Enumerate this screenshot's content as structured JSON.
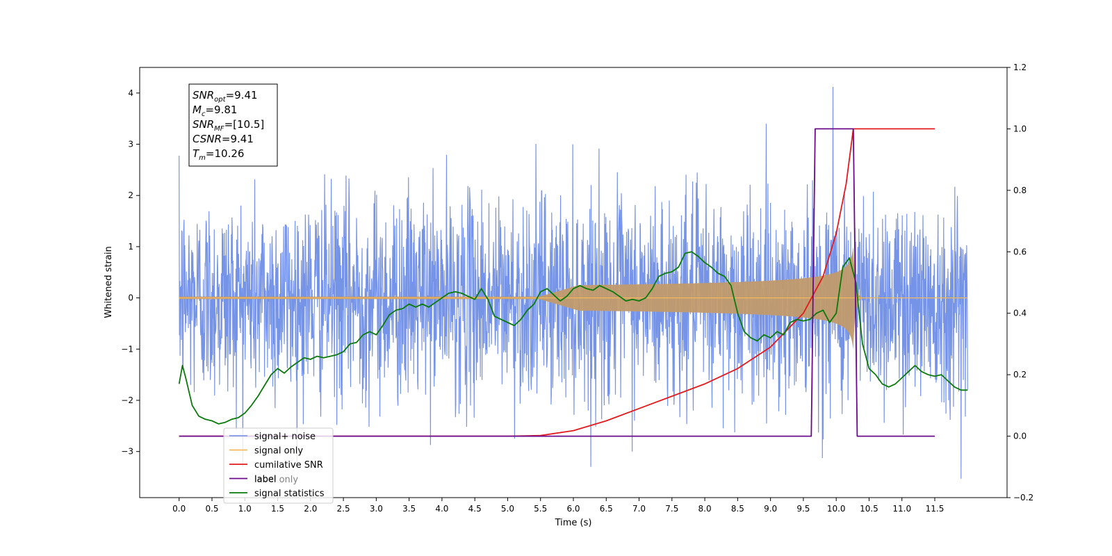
{
  "chart_data": {
    "type": "line",
    "xlabel": "Time (s)",
    "ylabel_left": "Whitened strain",
    "ylabel_right": "",
    "xlim": [
      -0.6,
      12.6
    ],
    "ylim_left": [
      -3.9,
      4.5
    ],
    "ylim_right": [
      -0.2,
      1.2
    ],
    "x_ticks": [
      "0.0",
      "0.5",
      "1.0",
      "1.5",
      "2.0",
      "2.5",
      "3.0",
      "3.5",
      "4.0",
      "4.5",
      "5.0",
      "5.5",
      "6.0",
      "6.5",
      "7.0",
      "7.5",
      "8.0",
      "8.5",
      "9.0",
      "9.5",
      "10.0",
      "10.5",
      "11.0",
      "11.5"
    ],
    "y_ticks_left": [
      "4",
      "3",
      "2",
      "1",
      "0",
      "−1",
      "−2",
      "−3"
    ],
    "y_ticks_right": [
      "1.2",
      "1.0",
      "0.8",
      "0.6",
      "0.4",
      "0.2",
      "0.0",
      "−0.2"
    ],
    "grid": false,
    "legend_position": "lower-left",
    "info_box": {
      "position": "upper-left",
      "lines": [
        {
          "base": "SNR",
          "sub": "opt",
          "value": "=9.41"
        },
        {
          "base": "M",
          "sub": "c",
          "value": "=9.81"
        },
        {
          "base": "SNR",
          "sub": "MF",
          "value": "=[10.5]"
        },
        {
          "base": "CSNR",
          "sub": "",
          "value": "=9.41"
        },
        {
          "base": "T",
          "sub": "m",
          "value": "=10.26"
        }
      ]
    },
    "series": [
      {
        "name": "signal+ noise",
        "color": "#6f8ee6",
        "axis": "left",
        "kind": "noise",
        "x_range": [
          0.0,
          12.0
        ],
        "envelope_typical": 1.0,
        "max": 4.12,
        "min": -3.53
      },
      {
        "name": "signal only",
        "color": "#f5b85c",
        "axis": "left",
        "kind": "chirp",
        "x_range": [
          0.0,
          12.0
        ],
        "merger_time": 10.26,
        "peak_amplitude": 1.0,
        "fill_color": "#c19a6b"
      },
      {
        "name": "cumilative SNR",
        "color": "#e31a1c",
        "axis": "right",
        "x": [
          0.0,
          5.0,
          5.5,
          6.0,
          6.5,
          7.0,
          7.5,
          8.0,
          8.5,
          9.0,
          9.5,
          9.8,
          10.0,
          10.15,
          10.26,
          11.5
        ],
        "y": [
          0.0,
          0.0,
          0.002,
          0.018,
          0.05,
          0.09,
          0.13,
          0.17,
          0.22,
          0.29,
          0.4,
          0.52,
          0.66,
          0.82,
          1.0,
          1.0
        ]
      },
      {
        "name": "label",
        "color": "#6a0a8a",
        "axis": "right",
        "x": [
          0.0,
          9.62,
          9.68,
          10.26,
          10.32,
          11.5
        ],
        "y": [
          0.0,
          0.0,
          1.0,
          1.0,
          0.0,
          0.0
        ]
      },
      {
        "name": "label only",
        "color": "#9e9e9e",
        "axis": "right",
        "x": [],
        "y": []
      },
      {
        "name": "signal statistics",
        "color": "#0a7a0a",
        "axis": "right",
        "x": [
          0.0,
          0.05,
          0.1,
          0.2,
          0.3,
          0.4,
          0.5,
          0.6,
          0.7,
          0.8,
          0.9,
          1.0,
          1.1,
          1.2,
          1.3,
          1.4,
          1.5,
          1.6,
          1.7,
          1.8,
          1.9,
          2.0,
          2.1,
          2.2,
          2.3,
          2.4,
          2.5,
          2.6,
          2.7,
          2.8,
          2.9,
          3.0,
          3.1,
          3.2,
          3.3,
          3.4,
          3.5,
          3.6,
          3.7,
          3.8,
          3.9,
          4.0,
          4.1,
          4.2,
          4.3,
          4.4,
          4.5,
          4.6,
          4.7,
          4.8,
          4.9,
          5.0,
          5.1,
          5.2,
          5.3,
          5.4,
          5.5,
          5.6,
          5.7,
          5.8,
          5.9,
          6.0,
          6.1,
          6.2,
          6.3,
          6.4,
          6.5,
          6.6,
          6.7,
          6.8,
          6.9,
          7.0,
          7.1,
          7.2,
          7.3,
          7.4,
          7.5,
          7.6,
          7.7,
          7.8,
          7.9,
          8.0,
          8.1,
          8.2,
          8.3,
          8.4,
          8.5,
          8.6,
          8.7,
          8.8,
          8.9,
          9.0,
          9.1,
          9.2,
          9.3,
          9.4,
          9.5,
          9.6,
          9.7,
          9.8,
          9.9,
          10.0,
          10.1,
          10.2,
          10.3,
          10.4,
          10.5,
          10.6,
          10.7,
          10.8,
          10.9,
          11.0,
          11.1,
          11.2,
          11.3,
          11.4,
          11.5,
          11.6,
          11.7,
          11.8,
          11.9,
          12.0
        ],
        "y": [
          0.17,
          0.23,
          0.19,
          0.1,
          0.065,
          0.055,
          0.05,
          0.04,
          0.045,
          0.055,
          0.06,
          0.075,
          0.1,
          0.13,
          0.165,
          0.2,
          0.22,
          0.205,
          0.225,
          0.24,
          0.255,
          0.25,
          0.26,
          0.255,
          0.26,
          0.265,
          0.275,
          0.3,
          0.305,
          0.33,
          0.34,
          0.33,
          0.36,
          0.395,
          0.41,
          0.415,
          0.43,
          0.42,
          0.43,
          0.42,
          0.435,
          0.45,
          0.465,
          0.47,
          0.465,
          0.455,
          0.445,
          0.48,
          0.445,
          0.39,
          0.38,
          0.37,
          0.36,
          0.38,
          0.41,
          0.43,
          0.47,
          0.48,
          0.46,
          0.44,
          0.455,
          0.48,
          0.49,
          0.48,
          0.475,
          0.49,
          0.48,
          0.47,
          0.455,
          0.44,
          0.445,
          0.44,
          0.45,
          0.48,
          0.52,
          0.53,
          0.535,
          0.55,
          0.595,
          0.6,
          0.585,
          0.565,
          0.55,
          0.53,
          0.52,
          0.49,
          0.4,
          0.34,
          0.32,
          0.31,
          0.33,
          0.32,
          0.34,
          0.33,
          0.37,
          0.38,
          0.375,
          0.38,
          0.4,
          0.41,
          0.37,
          0.4,
          0.55,
          0.58,
          0.5,
          0.3,
          0.22,
          0.2,
          0.17,
          0.16,
          0.17,
          0.19,
          0.21,
          0.23,
          0.21,
          0.2,
          0.195,
          0.2,
          0.18,
          0.16,
          0.15,
          0.15
        ]
      }
    ]
  }
}
